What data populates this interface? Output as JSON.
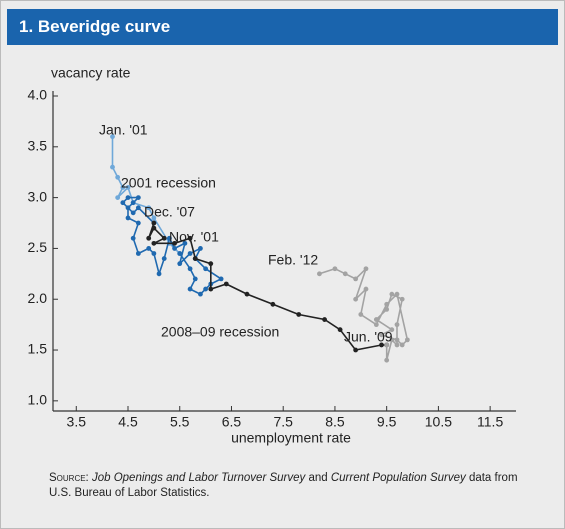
{
  "chart_data": {
    "type": "line",
    "title": "1. Beveridge curve",
    "y_label": "vacancy rate",
    "x_label": "unemployment rate",
    "xlim": [
      3.05,
      12.0
    ],
    "xticks": [
      3.5,
      4.5,
      5.5,
      6.5,
      7.5,
      8.5,
      9.5,
      10.5,
      11.5
    ],
    "ylim": [
      0.9,
      4.0
    ],
    "yticks": [
      {
        "value": 1.0,
        "label": "1.0"
      },
      1.5,
      {
        "value": 2.0,
        "label": "2.0"
      },
      2.5,
      {
        "value": 3.0,
        "label": "3.0"
      },
      3.5,
      {
        "value": 4.0,
        "label": "4.0"
      }
    ],
    "series": [
      {
        "name": "2001 recession",
        "color": "#6fa8d9",
        "x": [
          4.2,
          4.2,
          4.3,
          4.4,
          4.3,
          4.5,
          4.6,
          4.9,
          5.0,
          5.3,
          5.5
        ],
        "values": [
          3.6,
          3.3,
          3.2,
          3.1,
          3.0,
          3.1,
          2.95,
          2.9,
          2.8,
          2.55,
          2.45
        ]
      },
      {
        "color": "#1f69b0",
        "x": [
          5.5,
          5.7,
          5.8,
          5.7,
          5.9,
          6.0,
          6.1,
          6.3,
          6.0,
          5.8,
          5.9,
          5.7,
          5.5,
          5.6,
          5.4,
          5.3,
          5.2,
          5.1,
          5.0,
          4.9,
          4.7,
          4.6,
          4.7,
          4.5,
          4.5,
          4.6,
          4.7,
          4.5,
          4.4,
          4.6,
          4.7,
          5.0
        ],
        "values": [
          2.45,
          2.3,
          2.2,
          2.1,
          2.05,
          2.1,
          2.15,
          2.2,
          2.3,
          2.4,
          2.5,
          2.45,
          2.35,
          2.55,
          2.5,
          2.6,
          2.4,
          2.25,
          2.45,
          2.5,
          2.45,
          2.6,
          2.75,
          2.8,
          2.9,
          2.95,
          3.0,
          3.0,
          2.95,
          2.85,
          2.9,
          2.75
        ]
      },
      {
        "name": "2008–09 recession",
        "color": "#222222",
        "x": [
          5.0,
          4.9,
          5.0,
          5.2,
          5.0,
          5.4,
          5.7,
          5.8,
          6.1,
          6.1,
          6.4,
          6.8,
          7.3,
          7.8,
          8.3,
          8.6,
          8.9,
          9.4,
          9.5
        ],
        "values": [
          2.75,
          2.6,
          2.7,
          2.6,
          2.55,
          2.55,
          2.6,
          2.4,
          2.35,
          2.1,
          2.15,
          2.05,
          1.95,
          1.85,
          1.8,
          1.7,
          1.5,
          1.55,
          1.55
        ]
      },
      {
        "color": "#a3a3a3",
        "x": [
          9.5,
          9.5,
          9.6,
          9.7,
          9.7,
          9.8,
          9.6,
          9.5,
          9.3,
          9.6,
          9.4,
          9.7,
          9.8,
          9.9,
          9.7,
          9.5,
          9.3,
          9.0,
          9.1,
          8.9,
          9.1,
          8.9,
          8.7,
          8.5,
          8.2
        ],
        "values": [
          1.55,
          1.4,
          1.6,
          1.55,
          1.75,
          2.0,
          2.05,
          1.9,
          1.8,
          1.7,
          1.65,
          1.6,
          1.55,
          1.6,
          2.05,
          1.95,
          1.75,
          1.85,
          2.1,
          2.0,
          2.3,
          2.2,
          2.25,
          2.3,
          2.25
        ]
      }
    ],
    "annotations": [
      "Jan. '01",
      "Dec. '07",
      "Nov. '01",
      "Feb. '12",
      "Jun. '09"
    ],
    "source": {
      "label": "Source:",
      "parts": [
        "Job Openings and Labor Turnover Survey",
        " and ",
        "Current Population Survey",
        " data from U.S. Bureau of Labor Statistics."
      ]
    }
  }
}
